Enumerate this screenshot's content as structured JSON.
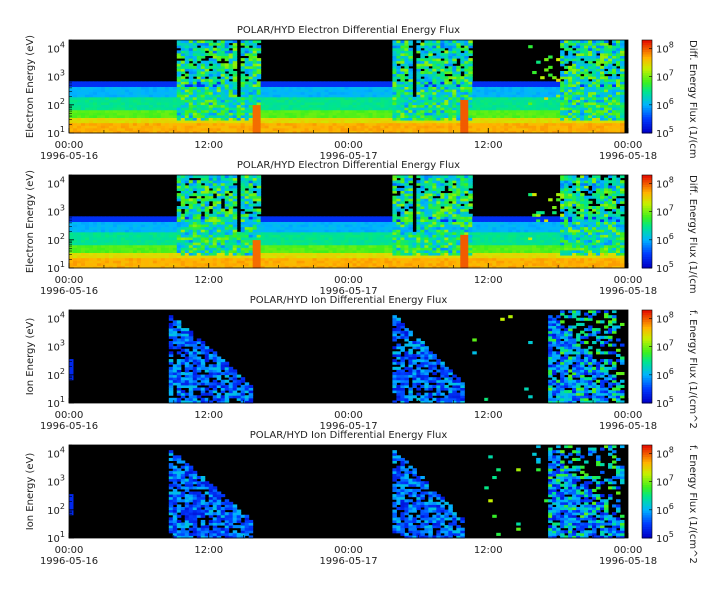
{
  "chart_data": [
    {
      "type": "heatmap",
      "title": "POLAR/HYD  Electron Differential Energy Flux",
      "ylabel": "Electron Energy (eV)",
      "colorbar_label": "Diff. Energy Flux (1/(cm",
      "y_scale": "log",
      "ylim": [
        10,
        20000
      ],
      "y_ticks": [
        {
          "base": "10",
          "exp": "1"
        },
        {
          "base": "10",
          "exp": "2"
        },
        {
          "base": "10",
          "exp": "3"
        },
        {
          "base": "10",
          "exp": "4"
        }
      ],
      "x_ticks": [
        "00:00",
        "12:00",
        "00:00",
        "12:00",
        "00:00"
      ],
      "x_dates": [
        "1996-05-16",
        "",
        "1996-05-17",
        "",
        "1996-05-18"
      ],
      "colorbar_ticks": [
        {
          "base": "10",
          "exp": "5"
        },
        {
          "base": "10",
          "exp": "6"
        },
        {
          "base": "10",
          "exp": "7"
        },
        {
          "base": "10",
          "exp": "8"
        }
      ],
      "colorbar_range": [
        100000,
        200000000
      ]
    },
    {
      "type": "heatmap",
      "title": "POLAR/HYD  Electron Differential Energy Flux",
      "ylabel": "Electron Energy (eV)",
      "colorbar_label": "Diff. Energy Flux (1/(cm",
      "y_scale": "log",
      "ylim": [
        10,
        20000
      ],
      "y_ticks": [
        {
          "base": "10",
          "exp": "1"
        },
        {
          "base": "10",
          "exp": "2"
        },
        {
          "base": "10",
          "exp": "3"
        },
        {
          "base": "10",
          "exp": "4"
        }
      ],
      "x_ticks": [
        "00:00",
        "12:00",
        "00:00",
        "12:00",
        "00:00"
      ],
      "x_dates": [
        "1996-05-16",
        "",
        "1996-05-17",
        "",
        "1996-05-18"
      ],
      "colorbar_ticks": [
        {
          "base": "10",
          "exp": "5"
        },
        {
          "base": "10",
          "exp": "6"
        },
        {
          "base": "10",
          "exp": "7"
        },
        {
          "base": "10",
          "exp": "8"
        }
      ],
      "colorbar_range": [
        100000,
        200000000
      ]
    },
    {
      "type": "heatmap",
      "title": "POLAR/HYD  Ion Differential Energy Flux",
      "ylabel": "Ion Energy (eV)",
      "colorbar_label": "f. Energy Flux (1/(cm^2",
      "y_scale": "log",
      "ylim": [
        10,
        20000
      ],
      "y_ticks": [
        {
          "base": "10",
          "exp": "1"
        },
        {
          "base": "10",
          "exp": "2"
        },
        {
          "base": "10",
          "exp": "3"
        },
        {
          "base": "10",
          "exp": "4"
        }
      ],
      "x_ticks": [
        "00:00",
        "12:00",
        "00:00",
        "12:00",
        "00:00"
      ],
      "x_dates": [
        "1996-05-16",
        "",
        "1996-05-17",
        "",
        "1996-05-18"
      ],
      "colorbar_ticks": [
        {
          "base": "10",
          "exp": "5"
        },
        {
          "base": "10",
          "exp": "6"
        },
        {
          "base": "10",
          "exp": "7"
        },
        {
          "base": "10",
          "exp": "8"
        }
      ],
      "colorbar_range": [
        100000,
        200000000
      ]
    },
    {
      "type": "heatmap",
      "title": "POLAR/HYD  Ion Differential Energy Flux",
      "ylabel": "Ion Energy (eV)",
      "colorbar_label": "f. Energy Flux (1/(cm^2",
      "y_scale": "log",
      "ylim": [
        10,
        20000
      ],
      "y_ticks": [
        {
          "base": "10",
          "exp": "1"
        },
        {
          "base": "10",
          "exp": "2"
        },
        {
          "base": "10",
          "exp": "3"
        },
        {
          "base": "10",
          "exp": "4"
        }
      ],
      "x_ticks": [
        "00:00",
        "12:00",
        "00:00",
        "12:00",
        "00:00"
      ],
      "x_dates": [
        "1996-05-16",
        "",
        "1996-05-17",
        "",
        "1996-05-18"
      ],
      "colorbar_ticks": [
        {
          "base": "10",
          "exp": "5"
        },
        {
          "base": "10",
          "exp": "6"
        },
        {
          "base": "10",
          "exp": "7"
        },
        {
          "base": "10",
          "exp": "8"
        }
      ],
      "colorbar_range": [
        100000,
        200000000
      ]
    }
  ]
}
